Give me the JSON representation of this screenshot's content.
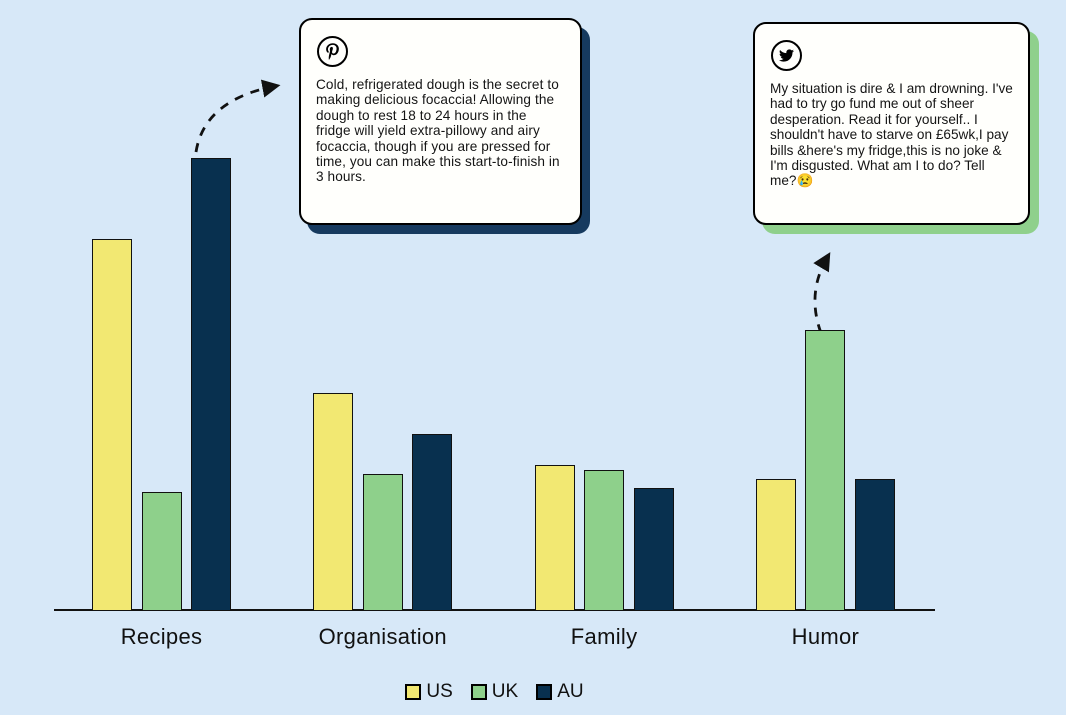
{
  "canvas": {
    "background_color": "#d7e8f8",
    "axis_color": "#111111"
  },
  "chart_data": {
    "type": "bar",
    "categories": [
      "Recipes",
      "Organisation",
      "Family",
      "Humor"
    ],
    "series": [
      {
        "name": "US",
        "color": "#f2e872",
        "values": [
          82,
          48,
          32,
          29
        ]
      },
      {
        "name": "UK",
        "color": "#8ed08b",
        "values": [
          26,
          30,
          31,
          62
        ]
      },
      {
        "name": "AU",
        "color": "#08304f",
        "values": [
          100,
          39,
          27,
          29
        ]
      }
    ],
    "title": "",
    "xlabel": "",
    "ylabel": "",
    "ylim": [
      0,
      100
    ],
    "grid": false,
    "legend_position": "bottom",
    "annotations": [
      {
        "target": "Recipes AU bar",
        "source_icon": "pinterest-icon"
      },
      {
        "target": "Humor UK bar",
        "source_icon": "twitter-icon"
      }
    ]
  },
  "legend": {
    "items": [
      {
        "label": "US",
        "color": "#f2e872"
      },
      {
        "label": "UK",
        "color": "#8ed08b"
      },
      {
        "label": "AU",
        "color": "#08304f"
      }
    ]
  },
  "callouts": [
    {
      "icon": "pinterest-icon",
      "shadow_color": "#163a5f",
      "text": "Cold, refrigerated dough is the secret to making delicious focaccia! Allowing the dough to rest 18 to 24 hours in the fridge will yield extra-pillowy and airy focaccia, though if you are pressed for time, you can make this start-to-finish in 3 hours."
    },
    {
      "icon": "twitter-icon",
      "shadow_color": "#8fd08c",
      "text": "My situation is dire & I am drowning. I've had to try go fund me out of sheer desperation. Read it for yourself.. I shouldn't have to starve on £65wk,I pay bills &here's my fridge,this is no joke & I'm disgusted. What am I to do? Tell me?😢"
    }
  ]
}
